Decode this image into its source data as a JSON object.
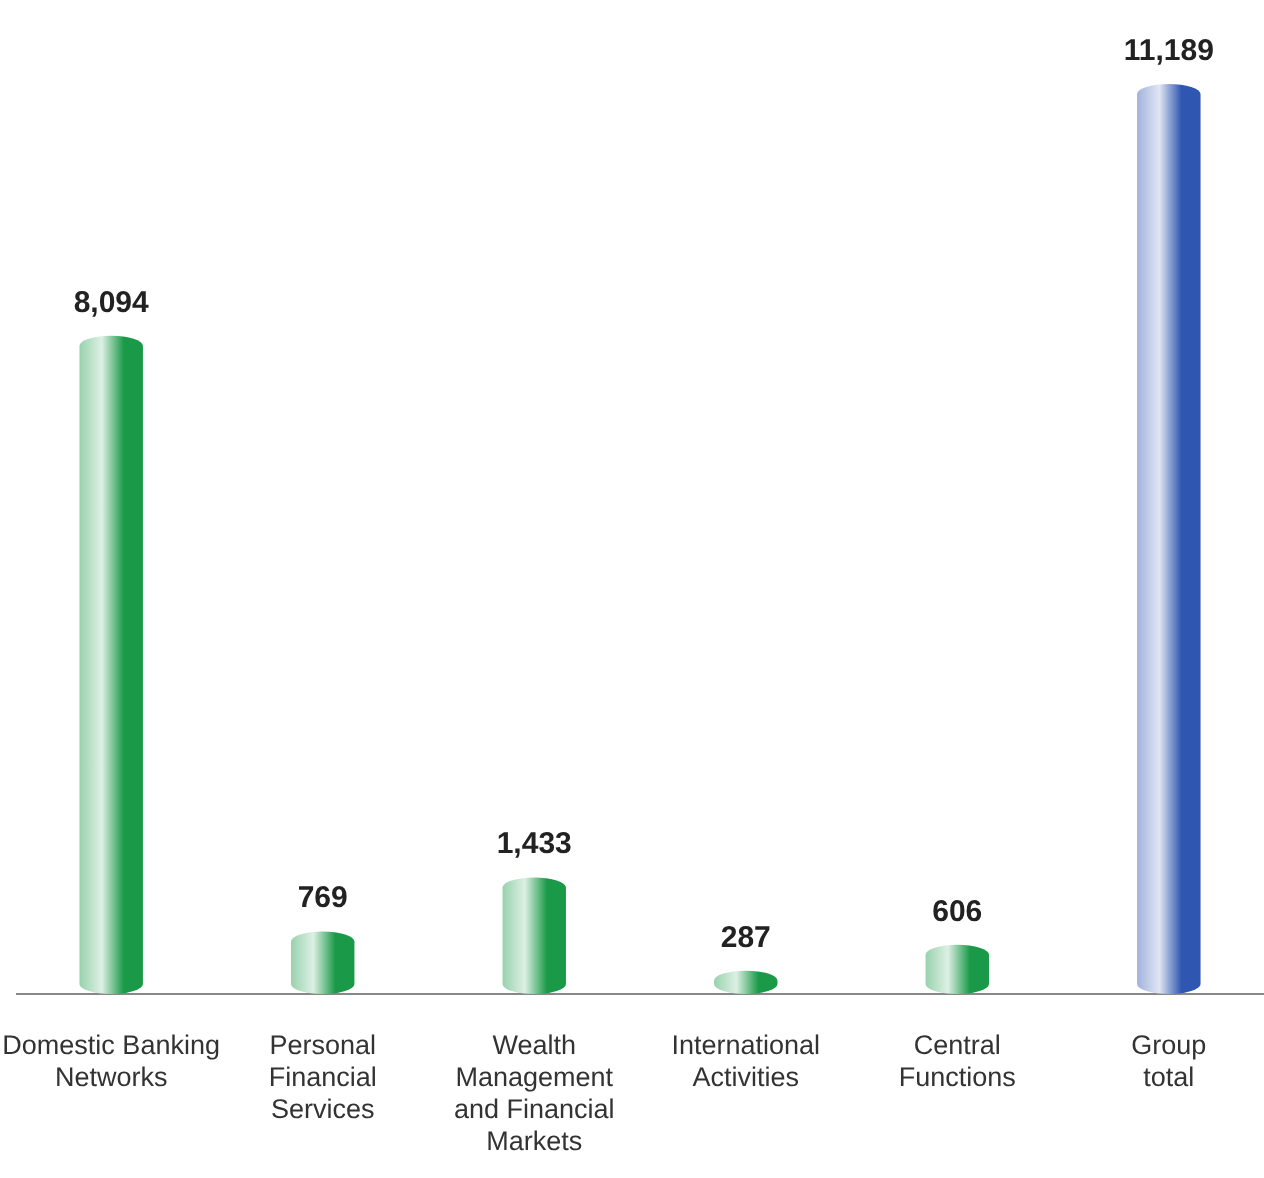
{
  "chart_data": {
    "type": "bar",
    "categories": [
      "Domestic Banking\nNetworks",
      "Personal\nFinancial\nServices",
      "Wealth\nManagement\nand Financial\nMarkets",
      "International\nActivities",
      "Central\nFunctions",
      "Group\ntotal"
    ],
    "values": [
      8094,
      769,
      1433,
      287,
      606,
      11189
    ],
    "colors": [
      "#1a9a48",
      "#1a9a48",
      "#1a9a48",
      "#1a9a48",
      "#1a9a48",
      "#2f56b0"
    ],
    "value_labels": [
      "8,094",
      "769",
      "1,433",
      "287",
      "606",
      "11,189"
    ]
  }
}
